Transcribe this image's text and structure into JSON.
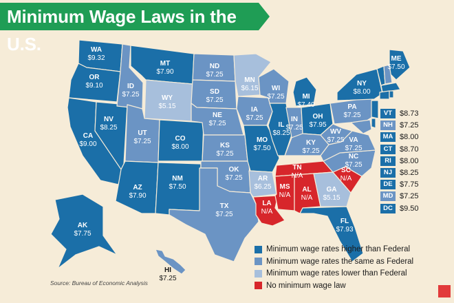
{
  "title": "Minimum Wage Laws in the U.S.",
  "source": "Source: Bureau of Economic Analysis",
  "colors": {
    "higher": "#1b6fa8",
    "same": "#6b94c4",
    "lower": "#a7bfdc",
    "none": "#d7262b",
    "background": "#f6ecd8",
    "title_bg": "#1f9d55"
  },
  "legend": [
    {
      "category": "higher",
      "label": "Minimum wage rates higher than Federal"
    },
    {
      "category": "same",
      "label": "Minimum wage rates the same as Federal"
    },
    {
      "category": "lower",
      "label": "Minimum wage rates lower than Federal"
    },
    {
      "category": "none",
      "label": "No minimum wage law"
    }
  ],
  "states": [
    {
      "abbr": "WA",
      "wage": "$9.32",
      "category": "higher"
    },
    {
      "abbr": "OR",
      "wage": "$9.10",
      "category": "higher"
    },
    {
      "abbr": "CA",
      "wage": "$9.00",
      "category": "higher"
    },
    {
      "abbr": "NV",
      "wage": "$8.25",
      "category": "higher"
    },
    {
      "abbr": "ID",
      "wage": "$7.25",
      "category": "same"
    },
    {
      "abbr": "MT",
      "wage": "$7.90",
      "category": "higher"
    },
    {
      "abbr": "WY",
      "wage": "$5.15",
      "category": "lower"
    },
    {
      "abbr": "UT",
      "wage": "$7.25",
      "category": "same"
    },
    {
      "abbr": "AZ",
      "wage": "$7.90",
      "category": "higher"
    },
    {
      "abbr": "CO",
      "wage": "$8.00",
      "category": "higher"
    },
    {
      "abbr": "NM",
      "wage": "$7.50",
      "category": "higher"
    },
    {
      "abbr": "ND",
      "wage": "$7.25",
      "category": "same"
    },
    {
      "abbr": "SD",
      "wage": "$7.25",
      "category": "same"
    },
    {
      "abbr": "NE",
      "wage": "$7.25",
      "category": "same"
    },
    {
      "abbr": "KS",
      "wage": "$7.25",
      "category": "same"
    },
    {
      "abbr": "OK",
      "wage": "$7.25",
      "category": "same"
    },
    {
      "abbr": "TX",
      "wage": "$7.25",
      "category": "same"
    },
    {
      "abbr": "MN",
      "wage": "$6.15",
      "category": "lower"
    },
    {
      "abbr": "IA",
      "wage": "$7.25",
      "category": "same"
    },
    {
      "abbr": "MO",
      "wage": "$7.50",
      "category": "higher"
    },
    {
      "abbr": "AR",
      "wage": "$6.25",
      "category": "lower"
    },
    {
      "abbr": "LA",
      "wage": "N/A",
      "category": "none"
    },
    {
      "abbr": "WI",
      "wage": "$7.25",
      "category": "same"
    },
    {
      "abbr": "IL",
      "wage": "$8.25",
      "category": "higher"
    },
    {
      "abbr": "MI",
      "wage": "$7.40",
      "category": "higher"
    },
    {
      "abbr": "IN",
      "wage": "$7.25",
      "category": "same"
    },
    {
      "abbr": "OH",
      "wage": "$7.95",
      "category": "higher"
    },
    {
      "abbr": "KY",
      "wage": "$7.25",
      "category": "same"
    },
    {
      "abbr": "TN",
      "wage": "N/A",
      "category": "none"
    },
    {
      "abbr": "MS",
      "wage": "N/A",
      "category": "none"
    },
    {
      "abbr": "AL",
      "wage": "N/A",
      "category": "none"
    },
    {
      "abbr": "GA",
      "wage": "$5.15",
      "category": "lower"
    },
    {
      "abbr": "FL",
      "wage": "$7.93",
      "category": "higher"
    },
    {
      "abbr": "SC",
      "wage": "N/A",
      "category": "none"
    },
    {
      "abbr": "NC",
      "wage": "$7.25",
      "category": "same"
    },
    {
      "abbr": "VA",
      "wage": "$7.25",
      "category": "same"
    },
    {
      "abbr": "WV",
      "wage": "$7.25",
      "category": "same"
    },
    {
      "abbr": "PA",
      "wage": "$7.25",
      "category": "same"
    },
    {
      "abbr": "NY",
      "wage": "$8.00",
      "category": "higher"
    },
    {
      "abbr": "ME",
      "wage": "$7.50",
      "category": "higher"
    },
    {
      "abbr": "AK",
      "wage": "$7.75",
      "category": "higher"
    },
    {
      "abbr": "HI",
      "wage": "$7.25",
      "category": "same"
    }
  ],
  "northeast_table": [
    {
      "abbr": "VT",
      "wage": "$8.73",
      "category": "higher"
    },
    {
      "abbr": "NH",
      "wage": "$7.25",
      "category": "same"
    },
    {
      "abbr": "MA",
      "wage": "$8.00",
      "category": "higher"
    },
    {
      "abbr": "CT",
      "wage": "$8.70",
      "category": "higher"
    },
    {
      "abbr": "RI",
      "wage": "$8.00",
      "category": "higher"
    },
    {
      "abbr": "NJ",
      "wage": "$8.25",
      "category": "higher"
    },
    {
      "abbr": "DE",
      "wage": "$7.75",
      "category": "higher"
    },
    {
      "abbr": "MD",
      "wage": "$7.25",
      "category": "same"
    },
    {
      "abbr": "DC",
      "wage": "$9.50",
      "category": "higher"
    }
  ]
}
